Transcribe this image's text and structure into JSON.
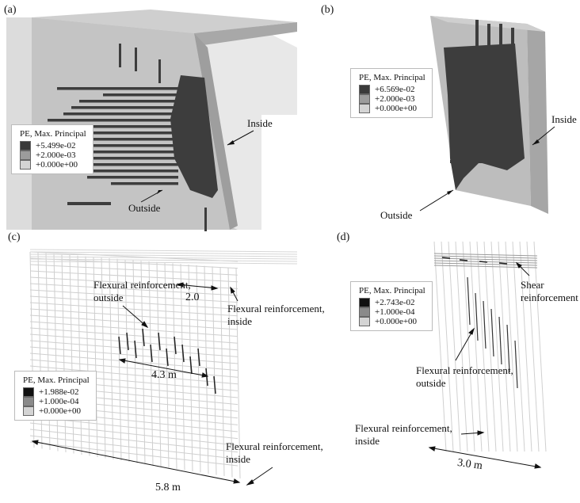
{
  "panels": {
    "a": {
      "label": "(a)",
      "legend": {
        "title": "PE, Max. Principal",
        "values": [
          "+5.499e-02",
          "+2.000e-03",
          "+0.000e+00"
        ]
      },
      "labels": {
        "inside": "Inside",
        "outside": "Outside"
      }
    },
    "b": {
      "label": "(b)",
      "legend": {
        "title": "PE, Max. Principal",
        "values": [
          "+6.569e-02",
          "+2.000e-03",
          "+0.000e+00"
        ]
      },
      "labels": {
        "inside": "Inside",
        "outside": "Outside"
      }
    },
    "c": {
      "label": "(c)",
      "legend": {
        "title": "PE, Max. Principal",
        "values": [
          "+1.988e-02",
          "+1.000e-04",
          "+0.000e+00"
        ]
      },
      "labels": {
        "flex_out_1": "Flexural reinforcement,",
        "flex_out_2": "outside",
        "flex_in_top_1": "Flexural reinforcement,",
        "flex_in_top_2": "inside",
        "flex_in_bot_1": "Flexural reinforcement,",
        "flex_in_bot_2": "inside"
      },
      "dims": {
        "d1": "2.0",
        "d2": "4.3 m",
        "d3": "5.8 m"
      }
    },
    "d": {
      "label": "(d)",
      "legend": {
        "title": "PE, Max. Principal",
        "values": [
          "+2.743e-02",
          "+1.000e-04",
          "+0.000e+00"
        ]
      },
      "labels": {
        "shear_1": "Shear",
        "shear_2": "reinforcement",
        "flex_out_1": "Flexural reinforcement,",
        "flex_out_2": "outside",
        "flex_in_1": "Flexural reinforcement,",
        "flex_in_2": "inside"
      },
      "dims": {
        "d1": "3.0 m"
      }
    }
  },
  "colors": {
    "dark": "#3a3a3a",
    "mid": "#9c9c9c",
    "light": "#c9c9c9",
    "mesh": "#c8c8c8"
  }
}
